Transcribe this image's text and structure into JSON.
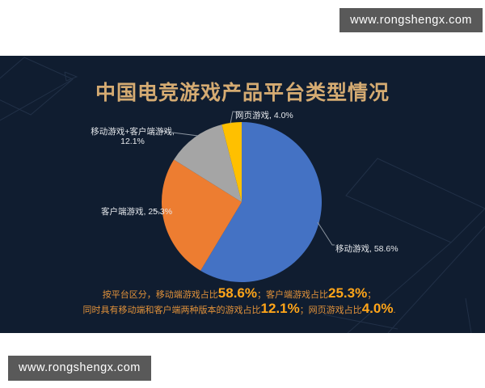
{
  "watermark": {
    "text": "www.rongshengx.com"
  },
  "chart_data": {
    "type": "pie",
    "title": "中国电竞游戏产品平台类型情况",
    "legend_position": "none",
    "start_angle_deg": 0,
    "direction": "clockwise",
    "background_color": "#101d30",
    "title_color": "#d5ab72",
    "label_color": "#e4e7eb",
    "slices": [
      {
        "label": "移动游戏",
        "value": 58.6,
        "color": "#4472c4",
        "callout": "移动游戏, 58.6%"
      },
      {
        "label": "客户端游戏",
        "value": 25.3,
        "color": "#ed7d31",
        "callout": "客户端游戏, 25.3%"
      },
      {
        "label": "移动游戏+客户端游戏",
        "value": 12.1,
        "color": "#a5a5a5",
        "callout_line1": "移动游戏+客户端游戏,",
        "callout_line2": "12.1%"
      },
      {
        "label": "网页游戏",
        "value": 4.0,
        "color": "#ffc000",
        "callout": "网页游戏, 4.0%"
      }
    ]
  },
  "summary": {
    "l1_a": "按平台区分，移动端游戏占比",
    "l1_pct1": "58.6%",
    "l1_b": "；客户端游戏占比",
    "l1_pct2": "25.3%",
    "l1_c": "；",
    "l2_a": "同时具有移动端和客户端两种版本的游戏占比",
    "l2_pct1": "12.1%",
    "l2_b": "；网页游戏占比",
    "l2_pct2": "4.0%",
    "l2_c": "."
  }
}
